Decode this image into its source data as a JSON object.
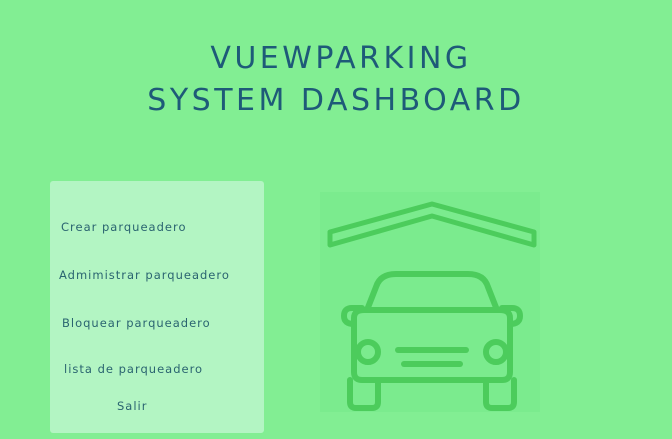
{
  "header": {
    "title_line1": "VUEWPARKING",
    "title_line2": "SYSTEM DASHBOARD"
  },
  "menu": {
    "items": [
      {
        "label": "Crear parqueadero"
      },
      {
        "label": "Admimistrar parqueadero"
      },
      {
        "label": "Bloquear parqueadero"
      },
      {
        "label": "lista de parqueadero"
      },
      {
        "label": "Salir"
      }
    ]
  },
  "illustration": {
    "icon": "car-garage-icon"
  },
  "colors": {
    "background": "#82ee93",
    "title": "#1e5a78",
    "menu_panel": "#b3f5c3",
    "menu_text": "#2a6470",
    "icon_stroke": "#4ccc5c"
  }
}
